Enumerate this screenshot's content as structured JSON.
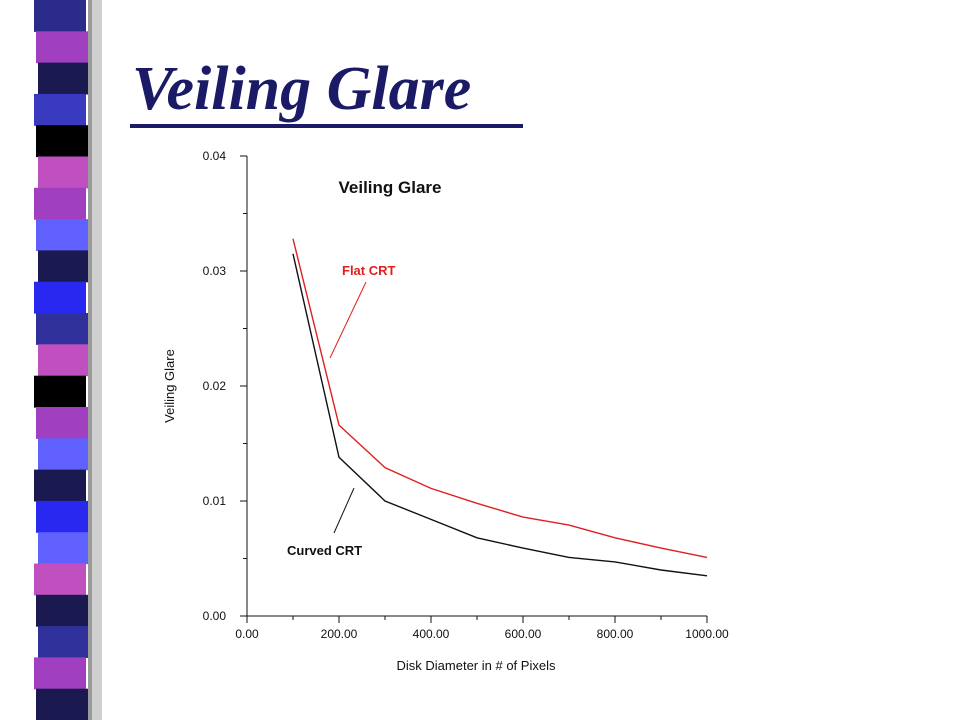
{
  "slide": {
    "title": "Veiling Glare"
  },
  "sidebar": {
    "stripe_colors": [
      "#2b2b8a",
      "#a040c0",
      "#1a1a50",
      "#3a3ac0",
      "#000000",
      "#c050c0",
      "#a040c0",
      "#6060ff",
      "#1a1a50",
      "#2828f0",
      "#30309a",
      "#c050c0",
      "#000000",
      "#a040c0",
      "#6060ff",
      "#1a1a50",
      "#2828f0",
      "#6060ff",
      "#c050c0",
      "#1a1a50",
      "#30309a",
      "#a040c0",
      "#1a1a50"
    ]
  },
  "chart_data": {
    "type": "line",
    "title": "Veiling Glare",
    "xlabel": "Disk Diameter in # of Pixels",
    "ylabel": "Veiling Glare",
    "xlim": [
      0,
      1000
    ],
    "ylim": [
      0,
      0.04
    ],
    "x_ticks": [
      "0.00",
      "200.00",
      "400.00",
      "600.00",
      "800.00",
      "1000.00"
    ],
    "y_ticks": [
      "0.00",
      "0.01",
      "0.02",
      "0.03",
      "0.04"
    ],
    "grid": false,
    "series": [
      {
        "name": "Flat CRT",
        "color": "#e02020",
        "x": [
          100,
          200,
          300,
          400,
          500,
          600,
          700,
          800,
          900,
          1000
        ],
        "y": [
          0.0328,
          0.0166,
          0.0129,
          0.0111,
          0.0098,
          0.0086,
          0.0079,
          0.0068,
          0.0059,
          0.0051
        ]
      },
      {
        "name": "Curved CRT",
        "color": "#111111",
        "x": [
          100,
          200,
          300,
          400,
          500,
          600,
          700,
          800,
          900,
          1000
        ],
        "y": [
          0.0315,
          0.0138,
          0.01,
          0.0084,
          0.0068,
          0.0059,
          0.0051,
          0.0047,
          0.004,
          0.0035
        ]
      }
    ]
  }
}
